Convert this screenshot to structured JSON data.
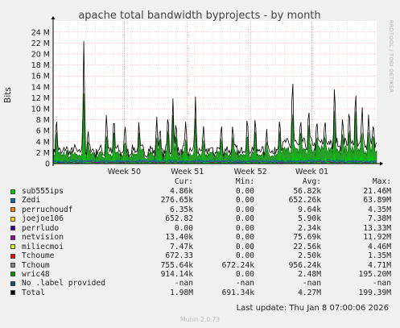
{
  "chart_data": {
    "type": "area",
    "title": "apache total bandwidth byprojects - by month",
    "ylabel": "Bits",
    "ylim": [
      0,
      25000000
    ],
    "y_ticks": [
      "0",
      "2 M",
      "4 M",
      "6 M",
      "8 M",
      "10 M",
      "12 M",
      "14 M",
      "16 M",
      "18 M",
      "20 M",
      "22 M",
      "24 M"
    ],
    "y_tick_values": [
      0,
      2000000,
      4000000,
      6000000,
      8000000,
      10000000,
      12000000,
      14000000,
      16000000,
      18000000,
      20000000,
      22000000,
      24000000
    ],
    "x_ticks": [
      "Week 50",
      "Week 51",
      "Week 52",
      "Week 01"
    ],
    "x_tick_positions": [
      0.22,
      0.415,
      0.61,
      0.8
    ],
    "grid": true,
    "legend_placement": "bottom",
    "column_headers": [
      "Cur:",
      "Min:",
      "Avg:",
      "Max:"
    ],
    "series": [
      {
        "name": "sub555ips",
        "color": "#00cc00",
        "cur": "4.86k",
        "min": "0.00",
        "avg": "56.82k",
        "max": "21.46M"
      },
      {
        "name": "Zedi",
        "color": "#0066b3",
        "cur": "276.65k",
        "min": "0.00",
        "avg": "652.26k",
        "max": "63.89M"
      },
      {
        "name": "perruchoudf",
        "color": "#ff8000",
        "cur": "6.35k",
        "min": "0.00",
        "avg": "9.64k",
        "max": "4.35M"
      },
      {
        "name": "joejoe106",
        "color": "#ffcc00",
        "cur": "652.82",
        "min": "0.00",
        "avg": "5.90k",
        "max": "7.38M"
      },
      {
        "name": "perrludo",
        "color": "#330099",
        "cur": "0.00",
        "min": "0.00",
        "avg": "2.34k",
        "max": "13.33M"
      },
      {
        "name": "netvision",
        "color": "#990099",
        "cur": "13.40k",
        "min": "0.00",
        "avg": "75.69k",
        "max": "11.92M"
      },
      {
        "name": "miliecmoi",
        "color": "#ccff00",
        "cur": "7.47k",
        "min": "0.00",
        "avg": "22.56k",
        "max": "4.46M"
      },
      {
        "name": "Tchoume",
        "color": "#ff0000",
        "cur": "672.33",
        "min": "0.00",
        "avg": "2.50k",
        "max": "1.35M"
      },
      {
        "name": "Tchoum",
        "color": "#808080",
        "cur": "755.64k",
        "min": "672.24k",
        "avg": "956.24k",
        "max": "4.71M"
      },
      {
        "name": "wric48",
        "color": "#008f00",
        "cur": "914.14k",
        "min": "0.00",
        "avg": "2.48M",
        "max": "195.20M"
      },
      {
        "name": "No .label provided",
        "color": "#00487d",
        "cur": "-nan",
        "min": "-nan",
        "avg": "-nan",
        "max": "-nan"
      },
      {
        "name": "Total",
        "color": "#000000",
        "cur": "1.98M",
        "min": "691.34k",
        "avg": "4.27M",
        "max": "199.39M"
      }
    ],
    "spikes_total": [
      [
        0.01,
        9.2
      ],
      [
        0.095,
        23.8
      ],
      [
        0.108,
        6.5
      ],
      [
        0.165,
        10.0
      ],
      [
        0.188,
        9.5
      ],
      [
        0.222,
        7.5
      ],
      [
        0.265,
        8.0
      ],
      [
        0.32,
        9.0
      ],
      [
        0.33,
        7.2
      ],
      [
        0.355,
        10.0
      ],
      [
        0.37,
        13.0
      ],
      [
        0.38,
        8.5
      ],
      [
        0.41,
        8.2
      ],
      [
        0.44,
        12.5
      ],
      [
        0.465,
        7.0
      ],
      [
        0.52,
        8.0
      ],
      [
        0.555,
        7.5
      ],
      [
        0.6,
        10.0
      ],
      [
        0.625,
        9.5
      ],
      [
        0.66,
        6.5
      ],
      [
        0.7,
        9.0
      ],
      [
        0.74,
        17.5
      ],
      [
        0.765,
        8.5
      ],
      [
        0.79,
        11.0
      ],
      [
        0.815,
        8.5
      ],
      [
        0.84,
        9.0
      ],
      [
        0.87,
        16.0
      ],
      [
        0.895,
        9.0
      ],
      [
        0.915,
        11.5
      ],
      [
        0.935,
        14.5
      ],
      [
        0.955,
        11.0
      ],
      [
        0.975,
        9.0
      ],
      [
        0.99,
        8.0
      ]
    ]
  },
  "side_text": "RRDTOOL / TOBI OETIKER",
  "last_update": "Last update: Thu Jan  8 07:00:06 2026",
  "footer": "Munin 2.0.73"
}
